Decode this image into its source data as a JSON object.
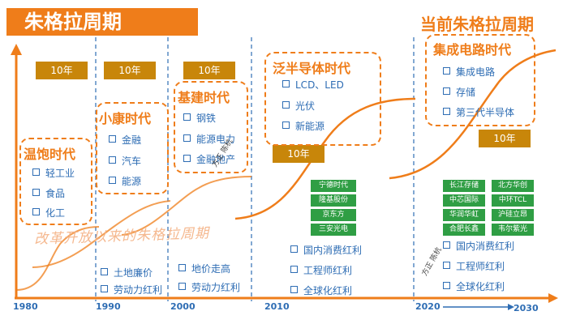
{
  "title": "朱格拉周期",
  "current_title": "当前朱格拉周期",
  "durations": [
    "10年",
    "10年",
    "10年",
    "10年",
    "10年"
  ],
  "watermark": "改革开放以来的朱格拉周期",
  "stamps": [
    "方正 陈杭",
    "方正 陈杭"
  ],
  "eras": [
    {
      "name": "温饱时代",
      "items": [
        "轻工业",
        "食品",
        "化工"
      ]
    },
    {
      "name": "小康时代",
      "items": [
        "金融",
        "汽车",
        "能源"
      ]
    },
    {
      "name": "基建时代",
      "items": [
        "钢铁",
        "能源电力",
        "金融地产"
      ]
    },
    {
      "name": "泛半导体时代",
      "items": [
        "LCD、LED",
        "光伏",
        "新能源"
      ]
    },
    {
      "name": "集成电路时代",
      "items": [
        "集成电路",
        "存储",
        "第三代半导体"
      ]
    }
  ],
  "bottom": {
    "d1990": [
      "土地廉价",
      "劳动力红利"
    ],
    "d2000": [
      "地价走高",
      "劳动力红利"
    ],
    "d2010": [
      "国内消费红利",
      "工程师红利",
      "全球化红利"
    ],
    "d2020": [
      "国内消费红利",
      "工程师红利",
      "全球化红利"
    ]
  },
  "companies_2010": [
    "宁德时代",
    "隆基股份",
    "京东方",
    "三安光电"
  ],
  "companies_2020": [
    [
      "长江存储",
      "北方华创"
    ],
    [
      "中芯国际",
      "中环TCL"
    ],
    [
      "华润华虹",
      "沪硅立昂"
    ],
    [
      "合肥长鑫",
      "韦尔紫光"
    ]
  ],
  "years": [
    "1980",
    "1990",
    "2000",
    "2010",
    "2020",
    "2030"
  ],
  "colors": {
    "orange": "#ef7d1a",
    "blue": "#2e6db4",
    "gold": "#c8860a",
    "green": "#2f9e44"
  }
}
